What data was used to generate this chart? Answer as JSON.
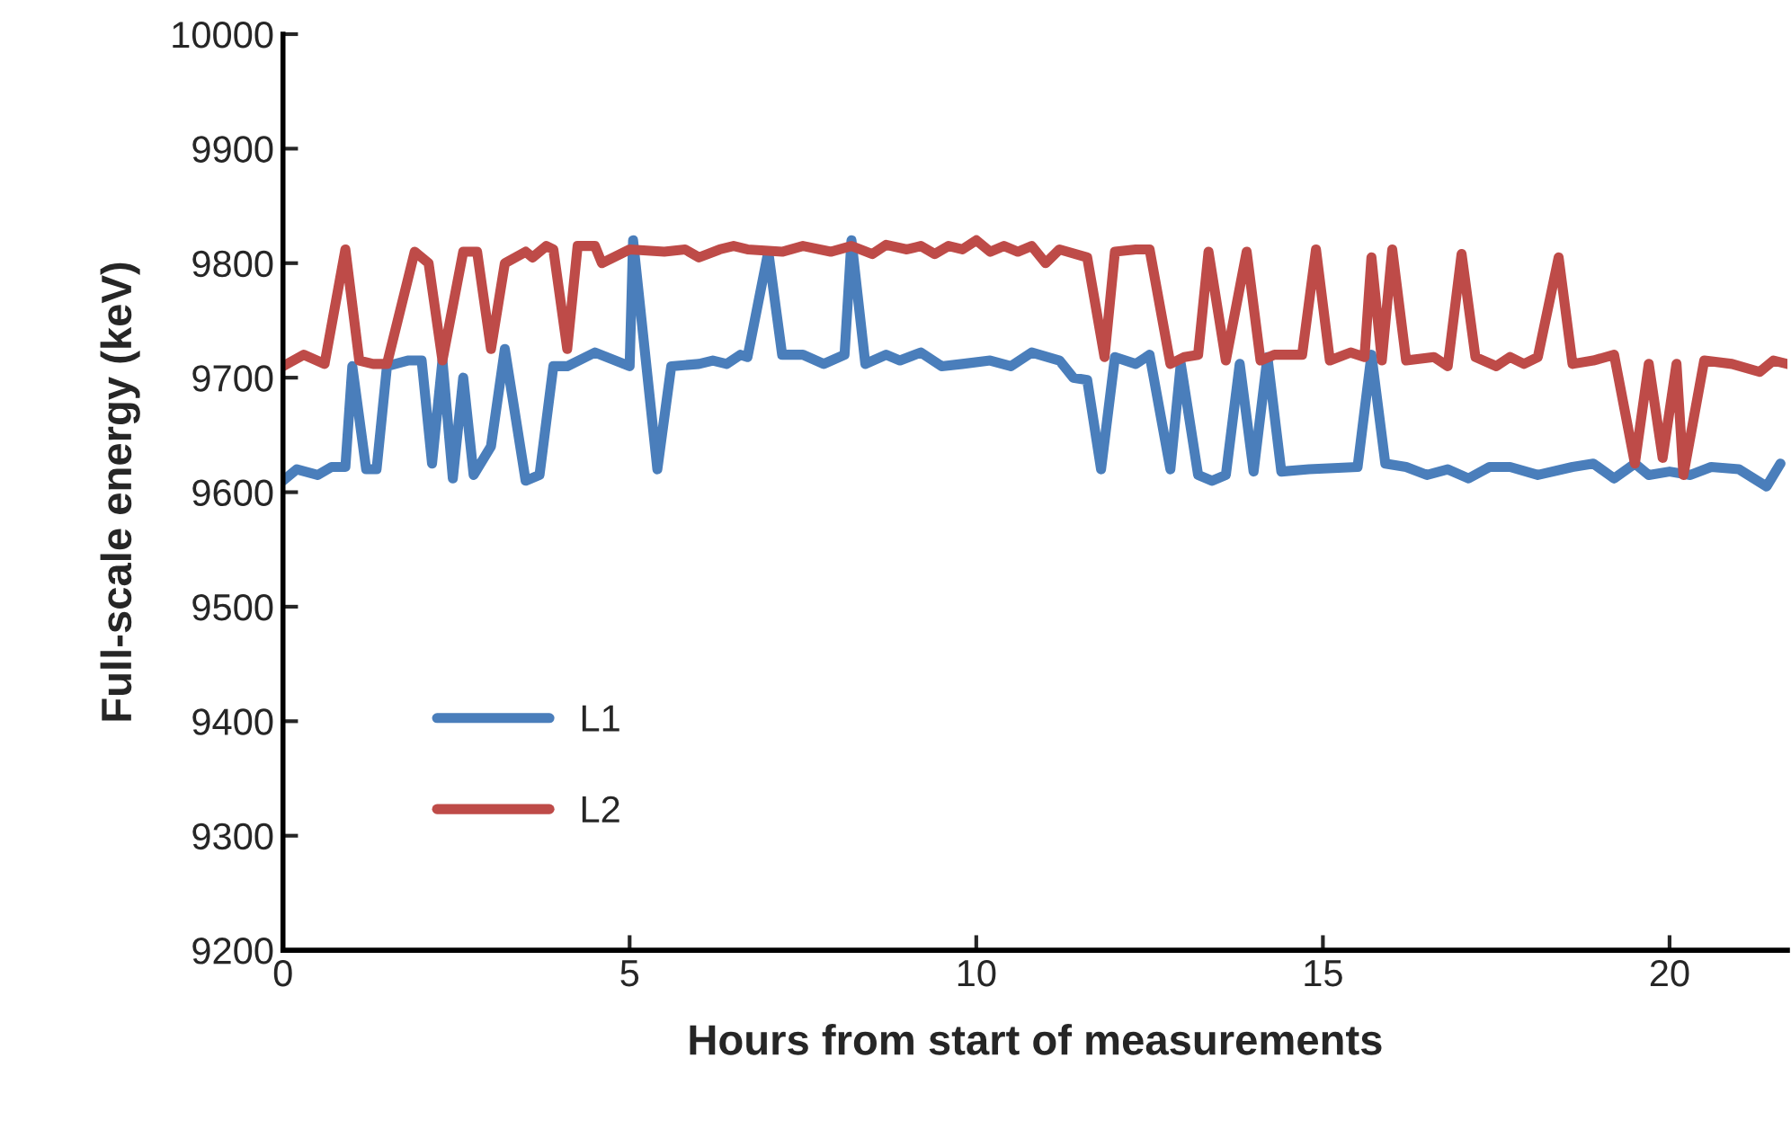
{
  "chart_data": {
    "type": "line",
    "xlabel": "Hours from start of measurements",
    "ylabel": "Full-scale energy (keV)",
    "xlim": [
      0,
      21.7
    ],
    "xticks": [
      0,
      5,
      10,
      15,
      20
    ],
    "ylim": [
      9200,
      10000
    ],
    "yticks": [
      9200,
      9300,
      9400,
      9500,
      9600,
      9700,
      9800,
      9900,
      10000
    ],
    "grid": false,
    "legend": "left",
    "marker": "none",
    "line_style": "solid",
    "series": [
      {
        "name": "L1",
        "color": "#4a7ebb",
        "x": [
          0,
          0.2,
          0.5,
          0.7,
          0.9,
          1.0,
          1.2,
          1.35,
          1.5,
          1.8,
          2.0,
          2.15,
          2.3,
          2.45,
          2.6,
          2.75,
          3.0,
          3.2,
          3.5,
          3.7,
          3.9,
          4.1,
          4.5,
          5.0,
          5.05,
          5.4,
          5.6,
          6.0,
          6.2,
          6.4,
          6.6,
          6.7,
          7.0,
          7.2,
          7.5,
          7.8,
          8.1,
          8.2,
          8.4,
          8.7,
          8.9,
          9.2,
          9.5,
          9.8,
          10.2,
          10.5,
          10.8,
          11.2,
          11.4,
          11.6,
          11.8,
          12.0,
          12.3,
          12.5,
          12.8,
          12.95,
          13.2,
          13.4,
          13.6,
          13.8,
          14.0,
          14.2,
          14.4,
          14.8,
          15.5,
          15.7,
          15.9,
          16.2,
          16.5,
          16.8,
          17.1,
          17.4,
          17.7,
          18.1,
          18.6,
          18.9,
          19.2,
          19.5,
          19.7,
          20.0,
          20.3,
          20.6,
          21.0,
          21.4,
          21.6
        ],
        "values": [
          9610,
          9620,
          9615,
          9622,
          9622,
          9710,
          9620,
          9620,
          9710,
          9715,
          9715,
          9625,
          9715,
          9612,
          9700,
          9615,
          9640,
          9725,
          9610,
          9615,
          9710,
          9710,
          9722,
          9710,
          9820,
          9620,
          9710,
          9712,
          9715,
          9712,
          9720,
          9718,
          9810,
          9720,
          9720,
          9712,
          9720,
          9820,
          9712,
          9720,
          9715,
          9722,
          9710,
          9712,
          9715,
          9710,
          9722,
          9715,
          9700,
          9698,
          9620,
          9718,
          9712,
          9720,
          9620,
          9712,
          9615,
          9610,
          9615,
          9712,
          9618,
          9718,
          9618,
          9620,
          9622,
          9720,
          9625,
          9622,
          9615,
          9620,
          9612,
          9622,
          9622,
          9615,
          9622,
          9625,
          9612,
          9625,
          9615,
          9618,
          9615,
          9622,
          9620,
          9605,
          9625
        ]
      },
      {
        "name": "L2",
        "color": "#be4b48",
        "x": [
          0,
          0.3,
          0.6,
          0.9,
          1.1,
          1.3,
          1.5,
          1.9,
          2.1,
          2.3,
          2.6,
          2.8,
          3.0,
          3.2,
          3.5,
          3.6,
          3.8,
          3.9,
          4.1,
          4.25,
          4.5,
          4.6,
          5.0,
          5.5,
          5.8,
          6.0,
          6.3,
          6.5,
          6.7,
          7.2,
          7.5,
          7.9,
          8.2,
          8.5,
          8.7,
          9.0,
          9.2,
          9.4,
          9.6,
          9.8,
          10.0,
          10.2,
          10.4,
          10.6,
          10.8,
          11.0,
          11.2,
          11.6,
          11.85,
          12.0,
          12.3,
          12.5,
          12.8,
          13.0,
          13.2,
          13.35,
          13.6,
          13.9,
          14.1,
          14.3,
          14.7,
          14.9,
          15.1,
          15.4,
          15.6,
          15.7,
          15.85,
          16.0,
          16.2,
          16.6,
          16.8,
          17.0,
          17.2,
          17.5,
          17.7,
          17.9,
          18.1,
          18.4,
          18.6,
          18.9,
          19.2,
          19.5,
          19.7,
          19.9,
          20.1,
          20.2,
          20.5,
          20.9,
          21.3,
          21.5,
          21.7
        ],
        "values": [
          9710,
          9720,
          9712,
          9812,
          9715,
          9712,
          9712,
          9810,
          9800,
          9715,
          9810,
          9810,
          9725,
          9800,
          9810,
          9805,
          9815,
          9812,
          9725,
          9815,
          9815,
          9800,
          9812,
          9810,
          9812,
          9805,
          9812,
          9815,
          9812,
          9810,
          9815,
          9810,
          9815,
          9808,
          9816,
          9812,
          9815,
          9808,
          9815,
          9812,
          9820,
          9810,
          9815,
          9810,
          9815,
          9800,
          9812,
          9805,
          9718,
          9810,
          9812,
          9812,
          9712,
          9718,
          9720,
          9810,
          9715,
          9810,
          9715,
          9720,
          9720,
          9812,
          9715,
          9722,
          9718,
          9805,
          9715,
          9812,
          9715,
          9718,
          9710,
          9808,
          9718,
          9710,
          9718,
          9712,
          9718,
          9805,
          9712,
          9715,
          9720,
          9625,
          9712,
          9630,
          9712,
          9615,
          9715,
          9712,
          9705,
          9715,
          9712
        ]
      }
    ]
  }
}
